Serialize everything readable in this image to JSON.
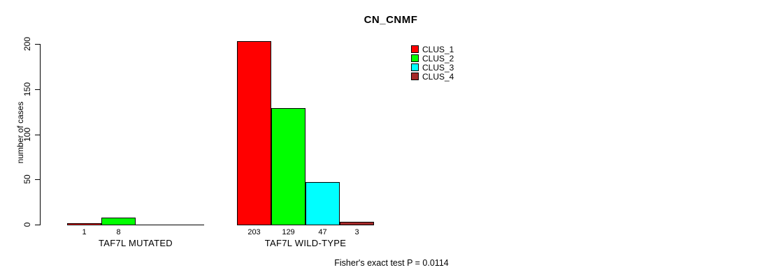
{
  "title": "CN_CNMF",
  "y_axis": {
    "label": "number of cases",
    "ticks": [
      0,
      50,
      100,
      150,
      200
    ]
  },
  "legend": {
    "entries": [
      {
        "label": "CLUS_1",
        "color": "#FF0000"
      },
      {
        "label": "CLUS_2",
        "color": "#00FF00"
      },
      {
        "label": "CLUS_3",
        "color": "#00FFFF"
      },
      {
        "label": "CLUS_4",
        "color": "#A52A2A"
      }
    ]
  },
  "caption": "Fisher's exact test P = 0.0114",
  "colors": {
    "clus_1": "#FF0000",
    "clus_2": "#00FF00",
    "clus_3": "#00FFFF",
    "clus_4": "#A52A2A",
    "axis": "#000000",
    "background": "#FFFFFF"
  },
  "chart_data": {
    "type": "bar",
    "title": "CN_CNMF",
    "xlabel": "",
    "ylabel": "number of cases",
    "ylim": [
      0,
      200
    ],
    "yticks": [
      0,
      50,
      100,
      150,
      200
    ],
    "grid": false,
    "legend_position": "top-center-right",
    "categories": [
      "TAF7L MUTATED",
      "TAF7L WILD-TYPE"
    ],
    "series": [
      {
        "name": "CLUS_1",
        "color": "#FF0000",
        "values": [
          1,
          203
        ]
      },
      {
        "name": "CLUS_2",
        "color": "#00FF00",
        "values": [
          8,
          129
        ]
      },
      {
        "name": "CLUS_3",
        "color": "#00FFFF",
        "values": [
          0,
          47
        ]
      },
      {
        "name": "CLUS_4",
        "color": "#A52A2A",
        "values": [
          0,
          3
        ]
      }
    ],
    "bar_value_labels": [
      [
        "1",
        "8",
        "",
        ""
      ],
      [
        "203",
        "129",
        "47",
        "3"
      ]
    ],
    "annotation": "Fisher's exact test P = 0.0114"
  }
}
